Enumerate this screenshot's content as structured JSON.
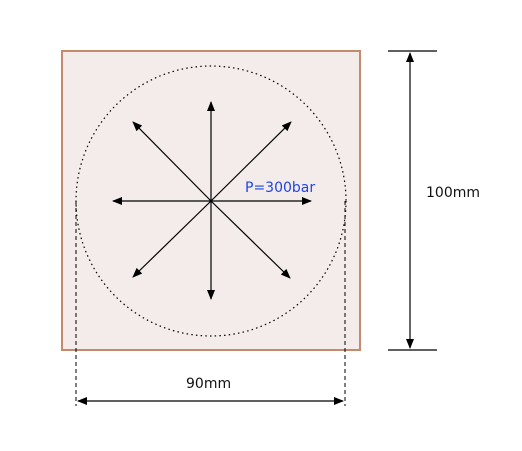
{
  "labels": {
    "pressure": "P=300bar",
    "height_dimension": "100mm",
    "diameter_dimension": "90mm"
  },
  "colors": {
    "plate_fill": "#f3ecea",
    "plate_border": "#c48a6e",
    "pressure_text": "#1f45e6",
    "lines": "#000000"
  },
  "pressure_arrows": {
    "count": 8,
    "directions": [
      "up",
      "up-right",
      "right",
      "down-right",
      "down",
      "down-left",
      "left",
      "up-left"
    ]
  }
}
